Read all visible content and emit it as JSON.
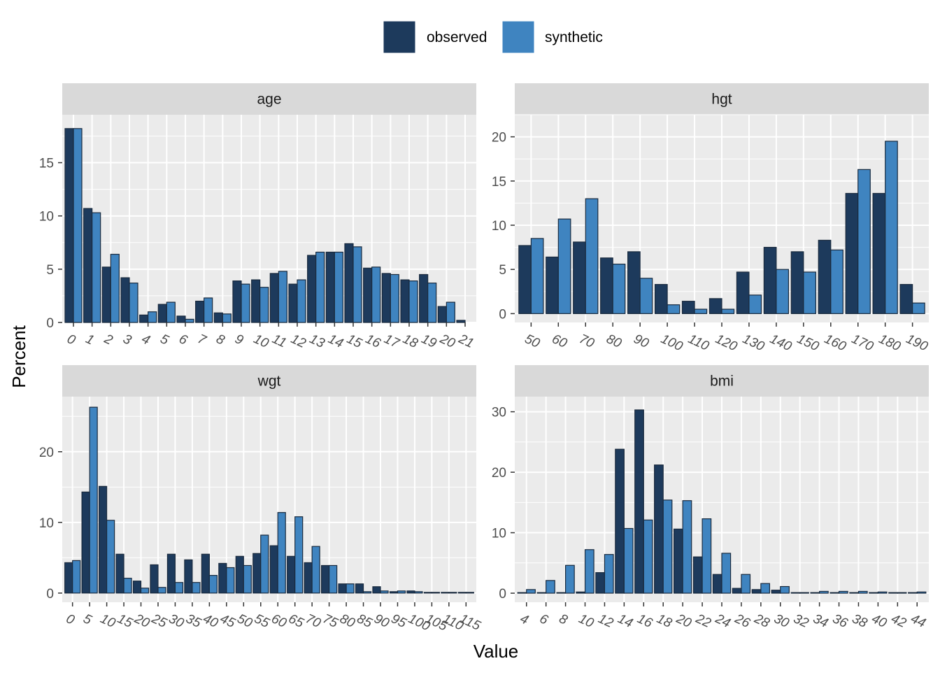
{
  "xlabel": "Value",
  "ylabel": "Percent",
  "legend": {
    "placement": "top",
    "items": [
      {
        "label": "observed",
        "color": "#1d3a5c"
      },
      {
        "label": "synthetic",
        "color": "#3f84c0"
      }
    ]
  },
  "colors": {
    "observed": "#1d3a5c",
    "synthetic": "#3f84c0",
    "panel_bg": "#ebebeb",
    "strip_bg": "#d9d9d9",
    "grid": "#ffffff"
  },
  "chart_data": [
    {
      "type": "bar",
      "title": "age",
      "categories": [
        "0",
        "1",
        "2",
        "3",
        "4",
        "5",
        "6",
        "7",
        "8",
        "9",
        "10",
        "11",
        "12",
        "13",
        "14",
        "15",
        "16",
        "17",
        "18",
        "19",
        "20",
        "21"
      ],
      "ylim": [
        0,
        19.5
      ],
      "yticks": [
        0,
        5,
        10,
        15
      ],
      "series": [
        {
          "name": "observed",
          "values": [
            18.2,
            10.7,
            5.2,
            4.2,
            0.7,
            1.7,
            0.6,
            2.0,
            0.9,
            3.9,
            4.0,
            4.6,
            3.6,
            6.3,
            6.6,
            7.4,
            5.1,
            4.6,
            4.0,
            4.5,
            1.5,
            0.2
          ]
        },
        {
          "name": "synthetic",
          "values": [
            18.2,
            10.3,
            6.4,
            3.7,
            1.0,
            1.9,
            0.3,
            2.3,
            0.8,
            3.6,
            3.3,
            4.8,
            4.0,
            6.6,
            6.6,
            7.1,
            5.2,
            4.5,
            3.9,
            3.7,
            1.9,
            0.0
          ]
        }
      ]
    },
    {
      "type": "bar",
      "title": "hgt",
      "categories": [
        "50",
        "60",
        "70",
        "80",
        "90",
        "100",
        "110",
        "120",
        "130",
        "140",
        "150",
        "160",
        "170",
        "180",
        "190"
      ],
      "ylim": [
        -1,
        22.5
      ],
      "yticks": [
        0,
        5,
        10,
        15,
        20
      ],
      "series": [
        {
          "name": "observed",
          "values": [
            7.7,
            6.4,
            8.1,
            6.3,
            7.0,
            3.3,
            1.4,
            1.7,
            4.7,
            7.5,
            7.0,
            8.3,
            13.6,
            13.6,
            3.3
          ]
        },
        {
          "name": "synthetic",
          "values": [
            8.5,
            10.7,
            13.0,
            5.6,
            4.0,
            1.0,
            0.5,
            0.5,
            2.1,
            5.0,
            4.7,
            7.2,
            16.3,
            19.5,
            1.2
          ]
        }
      ]
    },
    {
      "type": "bar",
      "title": "wgt",
      "categories": [
        "0",
        "5",
        "10",
        "15",
        "20",
        "25",
        "30",
        "35",
        "40",
        "45",
        "50",
        "55",
        "60",
        "65",
        "70",
        "75",
        "80",
        "85",
        "90",
        "95",
        "100",
        "105",
        "110",
        "115"
      ],
      "ylim": [
        -1.3,
        27.8
      ],
      "yticks": [
        0,
        10,
        20
      ],
      "series": [
        {
          "name": "observed",
          "values": [
            4.3,
            14.3,
            15.1,
            5.5,
            1.7,
            4.0,
            5.5,
            4.7,
            5.5,
            4.2,
            5.2,
            5.6,
            6.7,
            5.2,
            4.3,
            3.9,
            1.3,
            1.3,
            0.9,
            0.2,
            0.3,
            0.1,
            0.1,
            0.1
          ]
        },
        {
          "name": "synthetic",
          "values": [
            4.6,
            26.3,
            10.3,
            2.1,
            0.7,
            0.8,
            1.5,
            1.5,
            2.5,
            3.6,
            3.9,
            8.2,
            11.4,
            10.8,
            6.6,
            3.9,
            1.3,
            0.2,
            0.3,
            0.3,
            0.2,
            0.1,
            0.1,
            0.1
          ]
        }
      ]
    },
    {
      "type": "bar",
      "title": "bmi",
      "categories": [
        "4",
        "6",
        "8",
        "10",
        "12",
        "14",
        "16",
        "18",
        "20",
        "22",
        "24",
        "26",
        "28",
        "30",
        "32",
        "34",
        "36",
        "38",
        "40",
        "42",
        "44"
      ],
      "ylim": [
        -1.5,
        32.5
      ],
      "yticks": [
        0,
        10,
        20,
        30
      ],
      "series": [
        {
          "name": "observed",
          "values": [
            0.1,
            0.1,
            0.1,
            0.2,
            3.4,
            23.8,
            30.3,
            21.2,
            10.6,
            6.0,
            3.1,
            0.8,
            0.6,
            0.5,
            0.1,
            0.1,
            0.1,
            0.1,
            0.1,
            0.1,
            0.1
          ]
        },
        {
          "name": "synthetic",
          "values": [
            0.6,
            2.1,
            4.6,
            7.2,
            6.4,
            10.7,
            12.1,
            15.4,
            15.3,
            12.3,
            6.6,
            3.1,
            1.6,
            1.1,
            0.1,
            0.3,
            0.3,
            0.3,
            0.2,
            0.1,
            0.2
          ]
        }
      ]
    }
  ]
}
